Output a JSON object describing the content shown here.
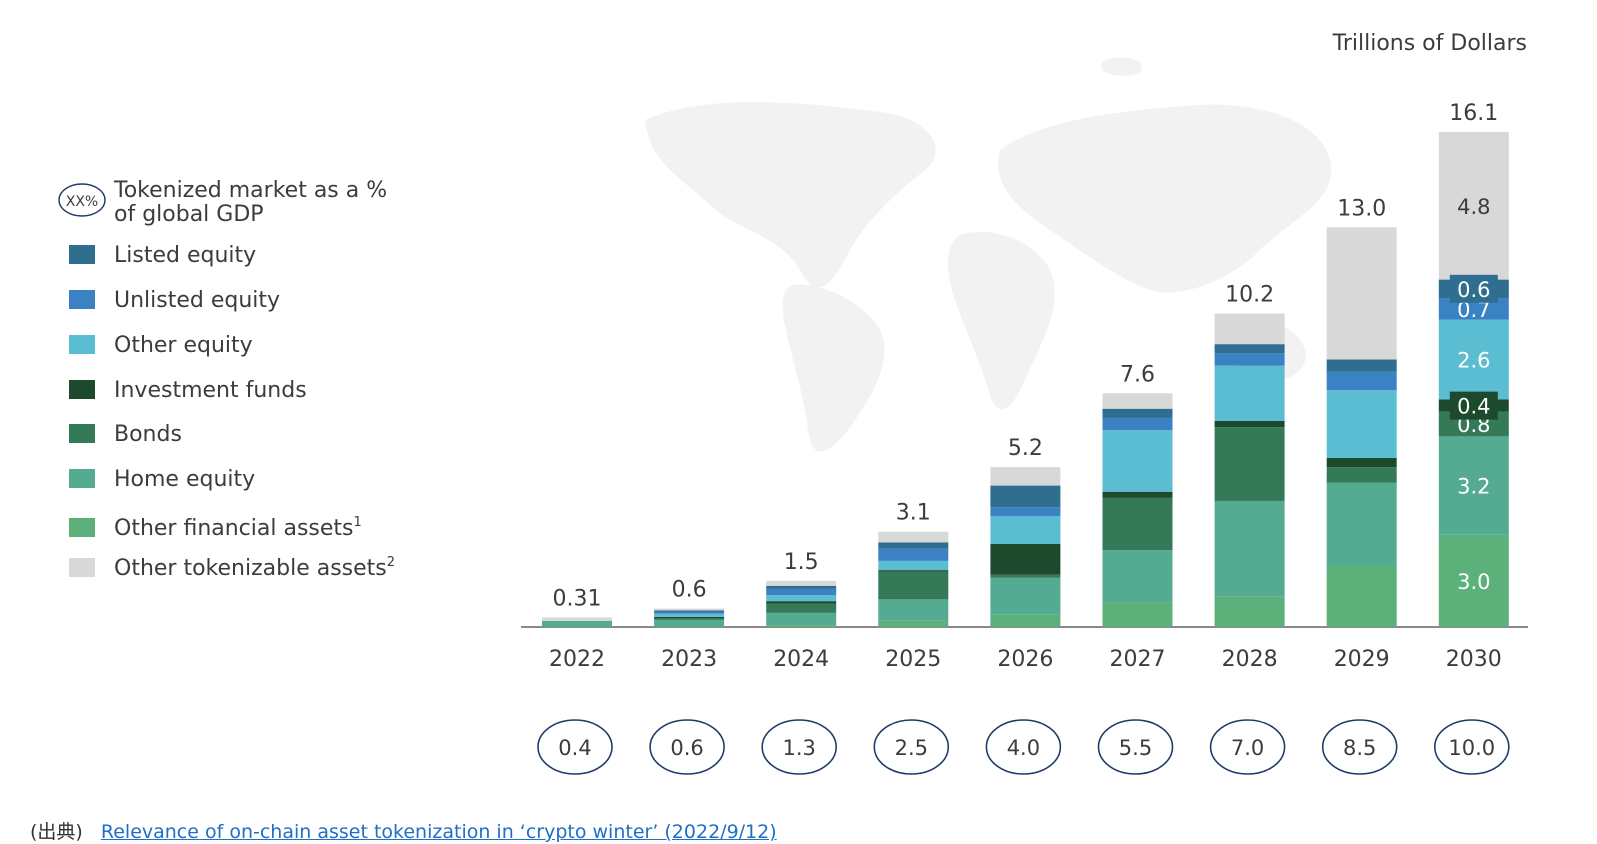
{
  "source": {
    "label": "(出典)",
    "link_text": "Relevance of on-chain asset tokenization in ‘crypto winter’ (2022/9/12)"
  },
  "chart_data": {
    "type": "bar",
    "stacked": true,
    "unit_label": "Trillions of Dollars",
    "categories": [
      "2022",
      "2023",
      "2024",
      "2025",
      "2026",
      "2027",
      "2028",
      "2029",
      "2030"
    ],
    "totals": [
      "0.31",
      "0.6",
      "1.5",
      "3.1",
      "5.2",
      "7.6",
      "10.2",
      "13.0",
      "16.1"
    ],
    "total_values": [
      0.31,
      0.6,
      1.5,
      3.1,
      5.2,
      7.6,
      10.2,
      13.0,
      16.1
    ],
    "gdp_percent": [
      "0.4",
      "0.6",
      "1.3",
      "2.5",
      "4.0",
      "5.5",
      "7.0",
      "8.5",
      "10.0"
    ],
    "gdp_legend": {
      "badge": "XX%",
      "label_line1": "Tokenized market as a %",
      "label_line2": "of global GDP"
    },
    "ylim": [
      0,
      16.1
    ],
    "series": [
      {
        "name": "Other financial assets",
        "sup": "1",
        "color": "#5cb17a",
        "values": [
          0.0,
          0.03,
          0.06,
          0.2,
          0.4,
          0.8,
          1.0,
          2.0,
          3.0
        ],
        "labels": [
          null,
          null,
          null,
          null,
          null,
          null,
          null,
          null,
          "3.0"
        ]
      },
      {
        "name": "Home equity",
        "sup": "",
        "color": "#55ab91",
        "values": [
          0.2,
          0.2,
          0.4,
          0.7,
          1.2,
          1.7,
          3.1,
          2.7,
          3.2
        ],
        "labels": [
          null,
          null,
          null,
          null,
          null,
          null,
          null,
          null,
          "3.2"
        ]
      },
      {
        "name": "Bonds",
        "sup": "",
        "color": "#357a58",
        "values": [
          0.0,
          0.05,
          0.3,
          0.9,
          0.1,
          1.7,
          2.4,
          0.5,
          0.8
        ],
        "labels": [
          null,
          null,
          null,
          null,
          null,
          null,
          null,
          null,
          "0.8"
        ]
      },
      {
        "name": "Investment funds",
        "sup": "",
        "color": "#1d4a2d",
        "values": [
          0.0,
          0.05,
          0.08,
          0.05,
          1.0,
          0.2,
          0.2,
          0.3,
          0.4
        ],
        "labels": [
          null,
          null,
          null,
          null,
          null,
          null,
          null,
          null,
          "0.4"
        ]
      },
      {
        "name": "Other equity",
        "sup": "",
        "color": "#5bbdd1",
        "values": [
          0.0,
          0.1,
          0.2,
          0.3,
          0.9,
          2.0,
          1.8,
          2.2,
          2.6
        ],
        "labels": [
          null,
          null,
          null,
          null,
          null,
          null,
          null,
          null,
          "2.6"
        ]
      },
      {
        "name": "Unlisted equity",
        "sup": "",
        "color": "#3b82c4",
        "values": [
          0.0,
          0.06,
          0.2,
          0.4,
          0.3,
          0.4,
          0.4,
          0.6,
          0.7
        ],
        "labels": [
          null,
          null,
          null,
          null,
          null,
          null,
          null,
          null,
          "0.7"
        ]
      },
      {
        "name": "Listed equity",
        "sup": "",
        "color": "#2f6e8f",
        "values": [
          0.0,
          0.05,
          0.1,
          0.2,
          0.7,
          0.3,
          0.3,
          0.4,
          0.6
        ],
        "labels": [
          null,
          null,
          null,
          null,
          null,
          null,
          null,
          null,
          "0.6"
        ]
      },
      {
        "name": "Other tokenizable assets",
        "sup": "2",
        "color": "#d8d8d8",
        "values": [
          0.11,
          0.06,
          0.16,
          0.35,
          0.6,
          0.5,
          1.0,
          4.3,
          4.8
        ],
        "labels": [
          null,
          null,
          null,
          null,
          null,
          null,
          null,
          null,
          "4.8"
        ]
      }
    ],
    "legend_order": [
      "Listed equity",
      "Unlisted equity",
      "Other equity",
      "Investment funds",
      "Bonds",
      "Home equity",
      "Other financial assets",
      "Other tokenizable assets"
    ]
  }
}
